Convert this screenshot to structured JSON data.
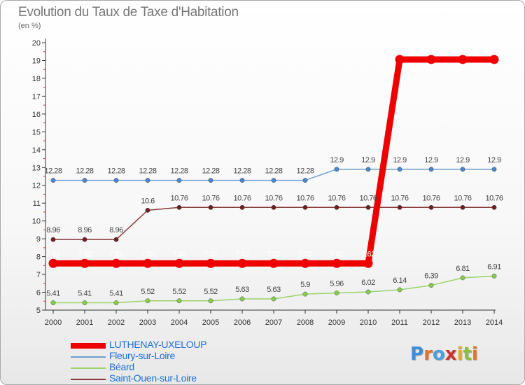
{
  "title": "Evolution du Taux de Taxe d'Habitation",
  "subtitle": "(en %)",
  "logo": {
    "letters": [
      "P",
      "r",
      "o",
      "x",
      "i",
      "t",
      "i"
    ],
    "colors": [
      "#3a8fd6",
      "#e0762b",
      "#4aa0de",
      "#cc3333",
      "#e8a82a",
      "#8cbf3f",
      "#e0762b"
    ]
  },
  "chart_data": {
    "type": "line",
    "title": "Evolution du Taux de Taxe d'Habitation",
    "ylabel": "(en %)",
    "xlabel": "",
    "ylim": [
      5,
      20
    ],
    "yticks": [
      5,
      6,
      7,
      8,
      9,
      10,
      11,
      12,
      13,
      14,
      15,
      16,
      17,
      18,
      19,
      20
    ],
    "grid": false,
    "legend_position": "bottom-left",
    "x": [
      "2000",
      "2001",
      "2002",
      "2003",
      "2004",
      "2005",
      "2006",
      "2007",
      "2008",
      "2009",
      "2010",
      "2011",
      "2012",
      "2013",
      "2014"
    ],
    "series": [
      {
        "name": "LUTHENAY-UXELOUP",
        "color": "#ee0000",
        "marker": "#ee0000",
        "width": 9,
        "labelColor": "#ffffff",
        "values": [
          7.62,
          7.62,
          7.62,
          7.62,
          7.62,
          7.62,
          7.62,
          7.62,
          7.62,
          7.62,
          7.62,
          19.06,
          19.06,
          19.06,
          19.06
        ],
        "labels": [
          "7.62",
          "7.62",
          "7.62",
          "7.62",
          "7.62",
          "7.62",
          "7.62",
          "7.62",
          "7.62",
          "7.62",
          "7.62",
          "19.06",
          "19.06",
          "19.06",
          "19.06"
        ]
      },
      {
        "name": "Fleury-sur-Loire",
        "color": "#6e9fd0",
        "marker": "#4a86c8",
        "width": 1.5,
        "labelColor": "#444444",
        "values": [
          12.28,
          12.28,
          12.28,
          12.28,
          12.28,
          12.28,
          12.28,
          12.28,
          12.28,
          12.9,
          12.9,
          12.9,
          12.9,
          12.9,
          12.9
        ],
        "labels": [
          "12.28",
          "12.28",
          "12.28",
          "12.28",
          "12.28",
          "12.28",
          "12.28",
          "12.28",
          "12.28",
          "12.9",
          "12.9",
          "12.9",
          "12.9",
          "12.9",
          "12.9"
        ]
      },
      {
        "name": "Béard",
        "color": "#9ad36a",
        "marker": "#86cc4c",
        "width": 1.5,
        "labelColor": "#444444",
        "values": [
          5.41,
          5.41,
          5.41,
          5.52,
          5.52,
          5.52,
          5.63,
          5.63,
          5.9,
          5.96,
          6.02,
          6.14,
          6.39,
          6.81,
          6.91
        ],
        "labels": [
          "5.41",
          "5.41",
          "5.41",
          "5.52",
          "5.52",
          "5.52",
          "5.63",
          "5.63",
          "5.9",
          "5.96",
          "6.02",
          "6.14",
          "6.39",
          "6.81",
          "6.91"
        ]
      },
      {
        "name": "Saint-Ouen-sur-Loire",
        "color": "#8a3a3a",
        "marker": "#6b2020",
        "width": 1.5,
        "labelColor": "#444444",
        "values": [
          8.96,
          8.96,
          8.96,
          10.6,
          10.76,
          10.76,
          10.76,
          10.76,
          10.76,
          10.76,
          10.76,
          10.76,
          10.76,
          10.76,
          10.76
        ],
        "labels": [
          "8.96",
          "8.96",
          "8.96",
          "10.6",
          "10.76",
          "10.76",
          "10.76",
          "10.76",
          "10.76",
          "10.76",
          "10.76",
          "10.76",
          "10.76",
          "10.76",
          "10.76"
        ]
      }
    ]
  }
}
